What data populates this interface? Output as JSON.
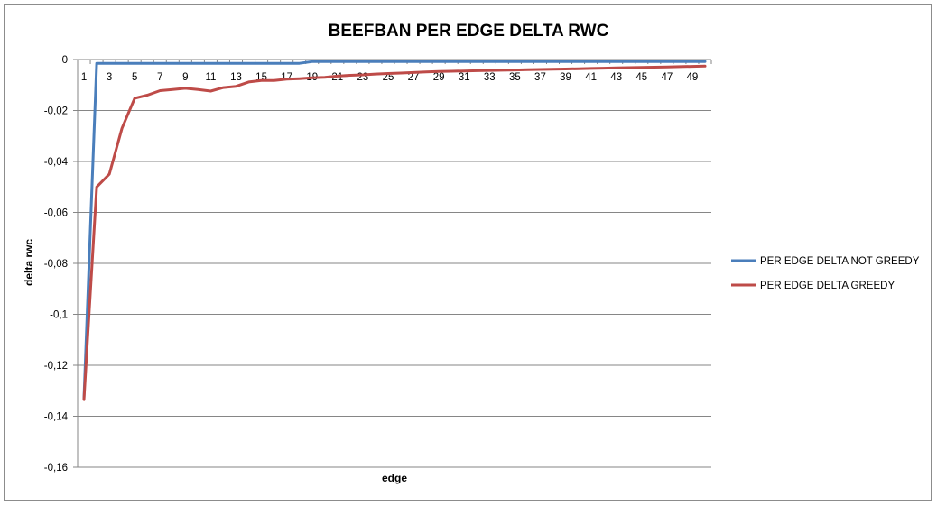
{
  "chart_data": {
    "type": "line",
    "title": "BEEFBAN PER EDGE DELTA RWC",
    "xlabel": "edge",
    "ylabel": "delta rwc",
    "ylim": [
      -0.16,
      0
    ],
    "y_ticks": [
      "0",
      "-0,02",
      "-0,04",
      "-0,06",
      "-0,08",
      "-0,1",
      "-0,12",
      "-0,14",
      "-0,16"
    ],
    "y_tick_values": [
      0,
      -0.02,
      -0.04,
      -0.06,
      -0.08,
      -0.1,
      -0.12,
      -0.14,
      -0.16
    ],
    "x_tick_labels": [
      "1",
      "3",
      "5",
      "7",
      "9",
      "11",
      "13",
      "15",
      "17",
      "19",
      "21",
      "23",
      "25",
      "27",
      "29",
      "31",
      "33",
      "35",
      "37",
      "39",
      "41",
      "43",
      "45",
      "47",
      "49"
    ],
    "x": [
      1,
      2,
      3,
      4,
      5,
      6,
      7,
      8,
      9,
      10,
      11,
      12,
      13,
      14,
      15,
      16,
      17,
      18,
      19,
      20,
      21,
      22,
      23,
      24,
      25,
      26,
      27,
      28,
      29,
      30,
      31,
      32,
      33,
      34,
      35,
      36,
      37,
      38,
      39,
      40,
      41,
      42,
      43,
      44,
      45,
      46,
      47,
      48,
      49,
      50
    ],
    "grid": true,
    "legend_position": "right",
    "series": [
      {
        "name": "PER EDGE DELTA NOT GREEDY",
        "color": "#4a7ebb",
        "values": [
          -0.133,
          -0.0015,
          -0.0015,
          -0.0015,
          -0.0015,
          -0.0015,
          -0.0015,
          -0.0015,
          -0.0015,
          -0.0015,
          -0.0015,
          -0.0015,
          -0.0015,
          -0.0015,
          -0.0015,
          -0.0015,
          -0.0015,
          -0.0015,
          -0.0008,
          -0.0008,
          -0.0008,
          -0.0008,
          -0.0008,
          -0.0008,
          -0.0008,
          -0.0008,
          -0.0008,
          -0.0008,
          -0.0008,
          -0.0008,
          -0.0008,
          -0.0008,
          -0.0008,
          -0.0008,
          -0.0008,
          -0.0008,
          -0.0008,
          -0.0008,
          -0.0008,
          -0.0008,
          -0.0008,
          -0.0008,
          -0.0008,
          -0.0008,
          -0.0008,
          -0.0008,
          -0.0008,
          -0.0008,
          -0.0008,
          -0.0008
        ]
      },
      {
        "name": "PER EDGE DELTA GREEDY",
        "color": "#be4b48",
        "values": [
          -0.1335,
          -0.05,
          -0.045,
          -0.027,
          -0.0152,
          -0.014,
          -0.0122,
          -0.0118,
          -0.0113,
          -0.0118,
          -0.0124,
          -0.011,
          -0.0105,
          -0.0088,
          -0.0082,
          -0.0082,
          -0.0077,
          -0.0075,
          -0.0072,
          -0.007,
          -0.0065,
          -0.0062,
          -0.006,
          -0.0057,
          -0.0055,
          -0.0053,
          -0.0051,
          -0.0049,
          -0.0047,
          -0.0046,
          -0.0045,
          -0.0044,
          -0.0043,
          -0.0042,
          -0.0041,
          -0.004,
          -0.0039,
          -0.0038,
          -0.0037,
          -0.0036,
          -0.0035,
          -0.0034,
          -0.0033,
          -0.0032,
          -0.0031,
          -0.003,
          -0.0029,
          -0.0028,
          -0.0027,
          -0.0026
        ]
      }
    ]
  }
}
